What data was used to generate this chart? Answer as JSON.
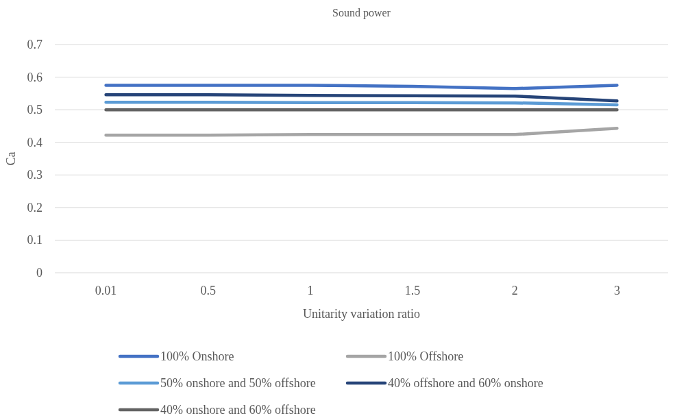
{
  "chart_data": {
    "type": "line",
    "title": "Sound power",
    "xlabel": "Unitarity variation ratio",
    "ylabel": "Ca",
    "categories": [
      "0.01",
      "0.5",
      "1",
      "1.5",
      "2",
      "3"
    ],
    "ylim": [
      0,
      0.7
    ],
    "yticks": [
      0,
      0.1,
      0.2,
      0.3,
      0.4,
      0.5,
      0.6,
      0.7
    ],
    "grid": "y",
    "legend": "bottom",
    "marker": "none",
    "line_style": "solid",
    "series": [
      {
        "name": "100% Onshore",
        "color": "#4472c4",
        "values": [
          0.575,
          0.575,
          0.575,
          0.572,
          0.565,
          0.575
        ]
      },
      {
        "name": "100% Offshore",
        "color": "#a5a5a5",
        "values": [
          0.422,
          0.422,
          0.424,
          0.424,
          0.424,
          0.443
        ]
      },
      {
        "name": "50% onshore and 50% offshore",
        "color": "#5b9bd5",
        "values": [
          0.523,
          0.523,
          0.522,
          0.522,
          0.521,
          0.515
        ]
      },
      {
        "name": "40% offshore and 60% onshore",
        "color": "#264478",
        "values": [
          0.546,
          0.546,
          0.544,
          0.543,
          0.542,
          0.527
        ]
      },
      {
        "name": "40% onshore and 60% offshore",
        "color": "#636363",
        "values": [
          0.5,
          0.5,
          0.5,
          0.5,
          0.5,
          0.5
        ]
      }
    ]
  }
}
